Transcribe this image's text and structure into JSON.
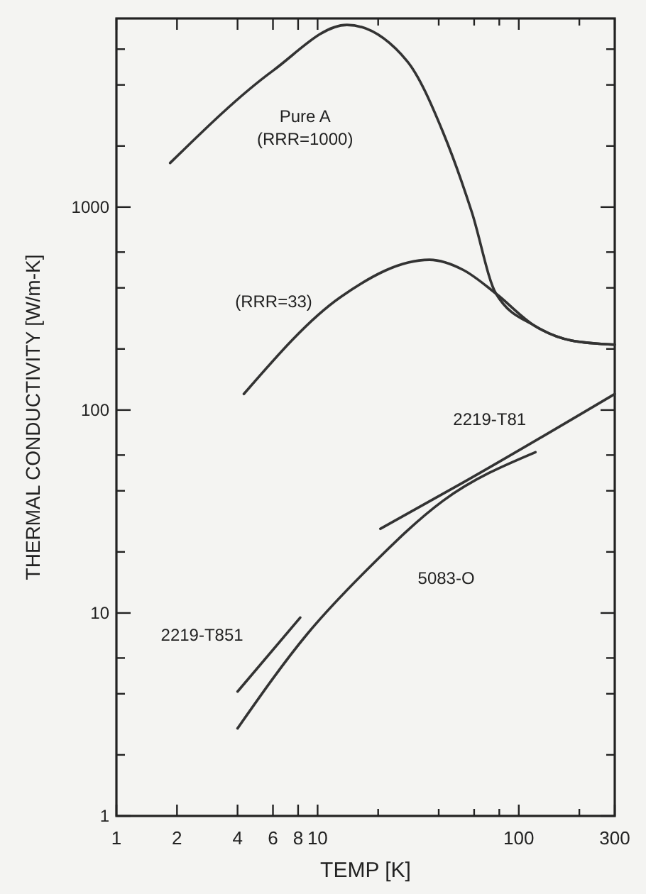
{
  "chart_data": {
    "type": "line",
    "xlabel": "TEMP [K]",
    "ylabel": "THERMAL CONDUCTIVITY [W/m-K]",
    "log": "xy",
    "grid": false,
    "xlim": [
      1,
      300
    ],
    "ylim": [
      1,
      8500
    ],
    "xticks": [
      1,
      2,
      4,
      6,
      8,
      10,
      {
        "value": 20,
        "label": null
      },
      {
        "value": 40,
        "label": null
      },
      {
        "value": 60,
        "label": null
      },
      {
        "value": 80,
        "label": null
      },
      100,
      {
        "value": 200,
        "label": null
      },
      300
    ],
    "yticks": [
      1,
      {
        "value": 2,
        "label": null
      },
      {
        "value": 4,
        "label": null
      },
      {
        "value": 6,
        "label": null
      },
      10,
      {
        "value": 20,
        "label": null
      },
      {
        "value": 40,
        "label": null
      },
      {
        "value": 60,
        "label": null
      },
      100,
      {
        "value": 200,
        "label": null
      },
      {
        "value": 400,
        "label": null
      },
      {
        "value": 600,
        "label": null
      },
      1000,
      {
        "value": 2000,
        "label": null
      },
      {
        "value": 4000,
        "label": null
      },
      {
        "value": 6000,
        "label": null
      }
    ],
    "series": [
      {
        "name": "Pure A\n(RRR=1000)",
        "color": "#333333",
        "x": [
          1.85,
          6,
          14,
          27.8,
          42,
          58.5,
          77,
          120,
          183,
          300
        ],
        "values": [
          1650,
          4700,
          7900,
          5250,
          2340,
          940,
          375,
          260,
          220,
          210
        ]
      },
      {
        "name": "(RRR=33)",
        "color": "#333333",
        "x": [
          4.3,
          13,
          36,
          53,
          77,
          120,
          183,
          300
        ],
        "values": [
          120,
          360,
          550,
          490,
          375,
          260,
          220,
          210
        ]
      },
      {
        "name": "2219-T81",
        "color": "#333333",
        "x": [
          20.5,
          53,
          300
        ],
        "values": [
          26,
          44,
          120
        ]
      },
      {
        "name": "5083-O",
        "color": "#333333",
        "x": [
          4,
          8.9,
          18,
          42,
          121
        ],
        "values": [
          2.7,
          7.9,
          16.7,
          35.7,
          62
        ]
      },
      {
        "name": "2219-T851",
        "color": "#333333",
        "x": [
          4,
          8.2
        ],
        "values": [
          4.1,
          9.5
        ]
      }
    ]
  }
}
